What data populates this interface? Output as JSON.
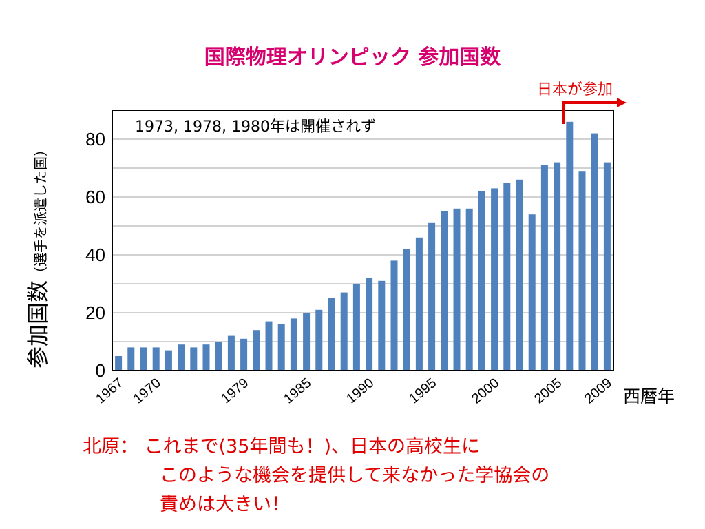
{
  "title": "国際物理オリンピック 参加国数",
  "callout": "日本が参加",
  "note": "1973, 1978, 1980年は開催されず",
  "ylabel_main": "参加国数",
  "ylabel_sub": "（選手を派遣した国）",
  "x_unit": "西暦年",
  "comment": {
    "line1": "北原：  これまで(35年間も！)、日本の高校生に",
    "line2": "このような機会を提供して来なかった学協会の",
    "line3": "責めは大きい！"
  },
  "colors": {
    "bar": "#4f81bd",
    "title": "#d6006e",
    "callout": "#e00000"
  },
  "chart_data": {
    "type": "bar",
    "ylim": [
      0,
      90
    ],
    "yticks": [
      0,
      20,
      40,
      60,
      80
    ],
    "xtick_labels": [
      "1967",
      "1970",
      "1979",
      "1985",
      "1990",
      "1995",
      "2000",
      "2005",
      "2009"
    ],
    "categories": [
      "1967",
      "1968",
      "1969",
      "1970",
      "1971",
      "1972",
      "1974",
      "1975",
      "1976",
      "1977",
      "1979",
      "1981",
      "1982",
      "1983",
      "1984",
      "1985",
      "1986",
      "1987",
      "1988",
      "1989",
      "1990",
      "1991",
      "1992",
      "1993",
      "1994",
      "1995",
      "1996",
      "1997",
      "1998",
      "1999",
      "2000",
      "2001",
      "2002",
      "2003",
      "2004",
      "2005",
      "2006",
      "2007",
      "2008",
      "2009"
    ],
    "values": [
      5,
      8,
      8,
      8,
      7,
      9,
      8,
      9,
      10,
      12,
      11,
      14,
      17,
      16,
      18,
      20,
      21,
      25,
      27,
      30,
      32,
      31,
      38,
      42,
      46,
      51,
      55,
      56,
      56,
      62,
      63,
      65,
      66,
      54,
      71,
      72,
      86,
      69,
      82,
      72
    ],
    "grid": true
  }
}
